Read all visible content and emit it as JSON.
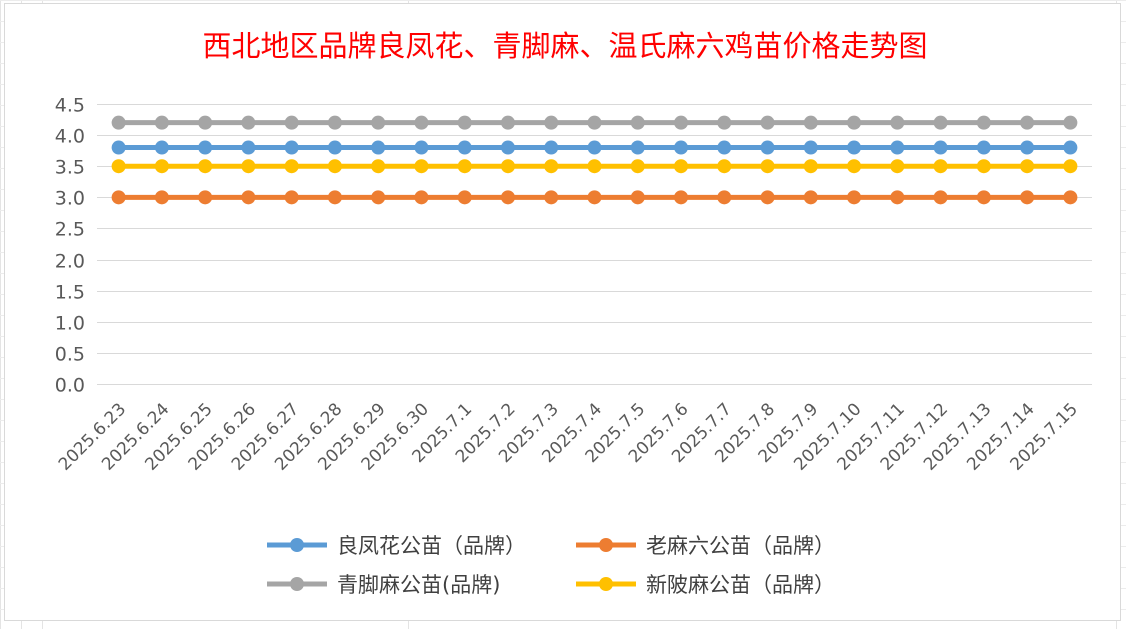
{
  "chart_data": {
    "type": "line",
    "title": "西北地区品牌良凤花、青脚麻、温氏麻六鸡苗价格走势图",
    "xlabel": "",
    "ylabel": "",
    "ylim": [
      0,
      4.5
    ],
    "y_ticks": [
      "0.0",
      "0.5",
      "1.0",
      "1.5",
      "2.0",
      "2.5",
      "3.0",
      "3.5",
      "4.0",
      "4.5"
    ],
    "grid": true,
    "legend_placement": "bottom",
    "categories": [
      "2025.6.23",
      "2025.6.24",
      "2025.6.25",
      "2025.6.26",
      "2025.6.27",
      "2025.6.28",
      "2025.6.29",
      "2025.6.30",
      "2025.7.1",
      "2025.7.2",
      "2025.7.3",
      "2025.7.4",
      "2025.7.5",
      "2025.7.6",
      "2025.7.7",
      "2025.7.8",
      "2025.7.9",
      "2025.7.10",
      "2025.7.11",
      "2025.7.12",
      "2025.7.13",
      "2025.7.14",
      "2025.7.15"
    ],
    "series": [
      {
        "name": "良凤花公苗（品牌）",
        "color": "#5b9bd5",
        "values": [
          3.8,
          3.8,
          3.8,
          3.8,
          3.8,
          3.8,
          3.8,
          3.8,
          3.8,
          3.8,
          3.8,
          3.8,
          3.8,
          3.8,
          3.8,
          3.8,
          3.8,
          3.8,
          3.8,
          3.8,
          3.8,
          3.8,
          3.8
        ]
      },
      {
        "name": "老麻六公苗（品牌）",
        "color": "#ed7d31",
        "values": [
          3.0,
          3.0,
          3.0,
          3.0,
          3.0,
          3.0,
          3.0,
          3.0,
          3.0,
          3.0,
          3.0,
          3.0,
          3.0,
          3.0,
          3.0,
          3.0,
          3.0,
          3.0,
          3.0,
          3.0,
          3.0,
          3.0,
          3.0
        ]
      },
      {
        "name": "青脚麻公苗(品牌)",
        "color": "#a5a5a5",
        "values": [
          4.2,
          4.2,
          4.2,
          4.2,
          4.2,
          4.2,
          4.2,
          4.2,
          4.2,
          4.2,
          4.2,
          4.2,
          4.2,
          4.2,
          4.2,
          4.2,
          4.2,
          4.2,
          4.2,
          4.2,
          4.2,
          4.2,
          4.2
        ]
      },
      {
        "name": "新陂麻公苗（品牌）",
        "color": "#ffc000",
        "values": [
          3.5,
          3.5,
          3.5,
          3.5,
          3.5,
          3.5,
          3.5,
          3.5,
          3.5,
          3.5,
          3.5,
          3.5,
          3.5,
          3.5,
          3.5,
          3.5,
          3.5,
          3.5,
          3.5,
          3.5,
          3.5,
          3.5,
          3.5
        ]
      }
    ]
  }
}
